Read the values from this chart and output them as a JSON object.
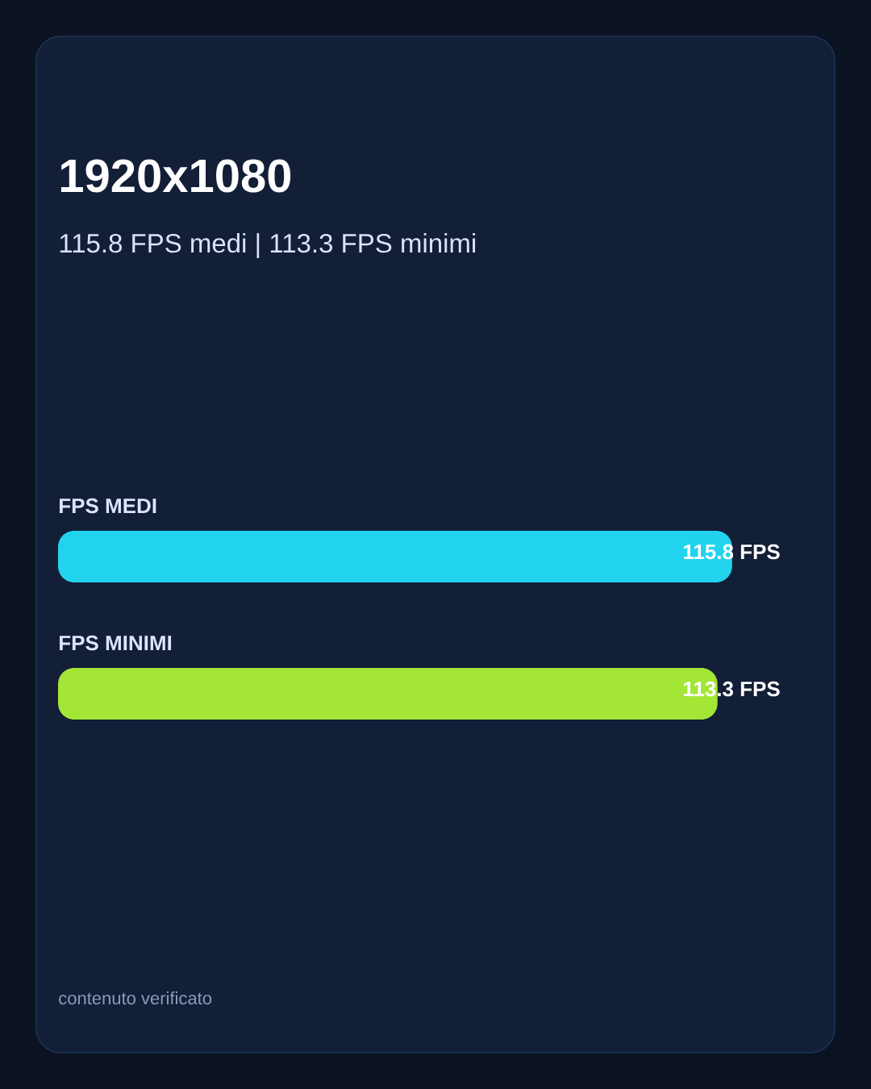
{
  "chart_data": {
    "type": "bar",
    "orientation": "horizontal",
    "title": "1920x1080",
    "subtitle": "115.8 FPS medi | 113.3 FPS minimi",
    "categories": [
      "FPS MEDI",
      "FPS MINIMI"
    ],
    "values": [
      115.8,
      113.3
    ],
    "colors": [
      "#22d3ee",
      "#a3e635"
    ],
    "value_labels": [
      "115.8 FPS",
      "113.3 FPS"
    ],
    "tick_labels": "y",
    "annotations": [
      "contenuto verificato"
    ]
  }
}
